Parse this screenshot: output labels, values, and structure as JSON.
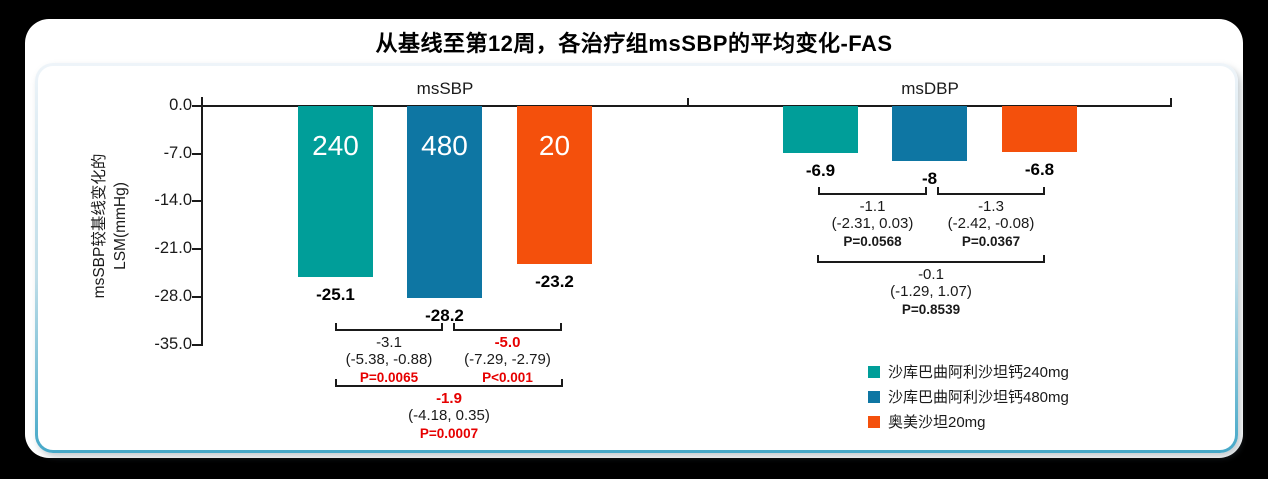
{
  "page_title": "从基线至第12周，各治疗组msSBP的平均变化-FAS",
  "colors": {
    "background": "#000000",
    "panel_border_teal": "#45A8C8",
    "axis": "#1A1A1A",
    "highlight_red": "#E60000",
    "series_teal": "#009E99",
    "series_blue": "#0E76A3",
    "series_orange": "#F4500C"
  },
  "chart_data": {
    "type": "bar",
    "title": "从基线至第12周，各治疗组msSBP的平均变化-FAS",
    "ylabel": "msSBP较基线变化的LSM(mmHg)",
    "ylabel_lines": [
      "msSBP较基线变化的",
      "LSM(mmHg)"
    ],
    "ylim": [
      0,
      -35
    ],
    "ytick_labels": [
      "0.0",
      "-7.0",
      "-14.0",
      "-21.0",
      "-28.0",
      "-35.0"
    ],
    "grid": false,
    "legend_position": "bottom-right",
    "groups": [
      "msSBP",
      "msDBP"
    ],
    "series": [
      {
        "name": "沙库巴曲阿利沙坦钙240mg",
        "color": "#009E99",
        "bar_text": "240",
        "values": [
          -25.1,
          -6.9
        ],
        "value_labels": [
          "-25.1",
          "-6.9"
        ]
      },
      {
        "name": "沙库巴曲阿利沙坦钙480mg",
        "color": "#0E76A3",
        "bar_text": "480",
        "values": [
          -28.2,
          -8.0
        ],
        "value_labels": [
          "-28.2",
          "-8"
        ]
      },
      {
        "name": "奥美沙坦20mg",
        "color": "#F4500C",
        "bar_text": "20",
        "values": [
          -23.2,
          -6.8
        ],
        "value_labels": [
          "-23.2",
          "-6.8"
        ]
      }
    ],
    "comparisons": [
      [
        {
          "diff": "-3.1",
          "ci": "(-5.38, -0.88)",
          "p": "P=0.0065",
          "diff_red": false,
          "p_red": true
        },
        {
          "diff": "-5.0",
          "ci": "(-7.29, -2.79)",
          "p": "P<0.001",
          "diff_red": true,
          "p_red": true
        },
        {
          "diff": "-1.9",
          "ci": "(-4.18, 0.35)",
          "p": "P=0.0007",
          "diff_red": true,
          "p_red": true
        }
      ],
      [
        {
          "diff": "-1.1",
          "ci": "(-2.31, 0.03)",
          "p": "P=0.0568",
          "diff_red": false,
          "p_red": false
        },
        {
          "diff": "-1.3",
          "ci": "(-2.42, -0.08)",
          "p": "P=0.0367",
          "diff_red": false,
          "p_red": false
        },
        {
          "diff": "-0.1",
          "ci": "(-1.29, 1.07)",
          "p": "P=0.8539",
          "diff_red": false,
          "p_red": false
        }
      ]
    ]
  }
}
